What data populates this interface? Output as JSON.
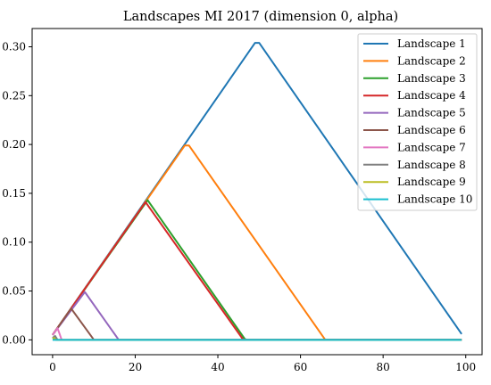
{
  "chart_data": {
    "type": "line",
    "title": "Landscapes MI 2017 (dimension 0, alpha)",
    "xlabel": "",
    "ylabel": "",
    "xlim": [
      -4.95,
      103.95
    ],
    "ylim": [
      -0.0152,
      0.3187
    ],
    "xticks": [
      0,
      20,
      40,
      60,
      80,
      100
    ],
    "yticks": [
      0.0,
      0.05,
      0.1,
      0.15,
      0.2,
      0.25,
      0.3
    ],
    "xtick_labels": [
      "0",
      "20",
      "40",
      "60",
      "80",
      "100"
    ],
    "ytick_labels": [
      "0.00",
      "0.05",
      "0.10",
      "0.15",
      "0.20",
      "0.25",
      "0.30"
    ],
    "grid": false,
    "legend_position": "top-right",
    "series": [
      {
        "name": "Landscape 1",
        "color": "#1f77b4",
        "x": [
          0,
          49,
          50,
          99
        ],
        "y": [
          0.005,
          0.304,
          0.304,
          0.006
        ]
      },
      {
        "name": "Landscape 2",
        "color": "#ff7f0e",
        "x": [
          0,
          32,
          33,
          66,
          99
        ],
        "y": [
          0.005,
          0.199,
          0.199,
          0.0,
          0.0
        ]
      },
      {
        "name": "Landscape 3",
        "color": "#2ca02c",
        "x": [
          0,
          23,
          46.5,
          47,
          99
        ],
        "y": [
          0.005,
          0.143,
          0.001,
          0.0,
          0.0
        ]
      },
      {
        "name": "Landscape 4",
        "color": "#d62728",
        "x": [
          0,
          22.5,
          46,
          46.5,
          99
        ],
        "y": [
          0.005,
          0.141,
          0.001,
          0.0,
          0.0
        ]
      },
      {
        "name": "Landscape 5",
        "color": "#9467bd",
        "x": [
          0,
          7.8,
          16,
          99
        ],
        "y": [
          0.005,
          0.049,
          0.0,
          0.0
        ]
      },
      {
        "name": "Landscape 6",
        "color": "#8c564b",
        "x": [
          0,
          4.5,
          10,
          99
        ],
        "y": [
          0.005,
          0.032,
          0.0,
          0.0
        ]
      },
      {
        "name": "Landscape 7",
        "color": "#e377c2",
        "x": [
          0,
          1.2,
          2.2,
          99
        ],
        "y": [
          0.005,
          0.012,
          0.0,
          0.0
        ]
      },
      {
        "name": "Landscape 8",
        "color": "#7f7f7f",
        "x": [
          0,
          0.6,
          1.2,
          99
        ],
        "y": [
          0.002,
          0.004,
          0.0,
          0.0
        ]
      },
      {
        "name": "Landscape 9",
        "color": "#bcbd22",
        "x": [
          0,
          0.4,
          0.8,
          99
        ],
        "y": [
          0.001,
          0.002,
          0.0,
          0.0
        ]
      },
      {
        "name": "Landscape 10",
        "color": "#17becf",
        "x": [
          0,
          1,
          99
        ],
        "y": [
          0.0,
          0.0,
          0.0
        ]
      }
    ]
  }
}
